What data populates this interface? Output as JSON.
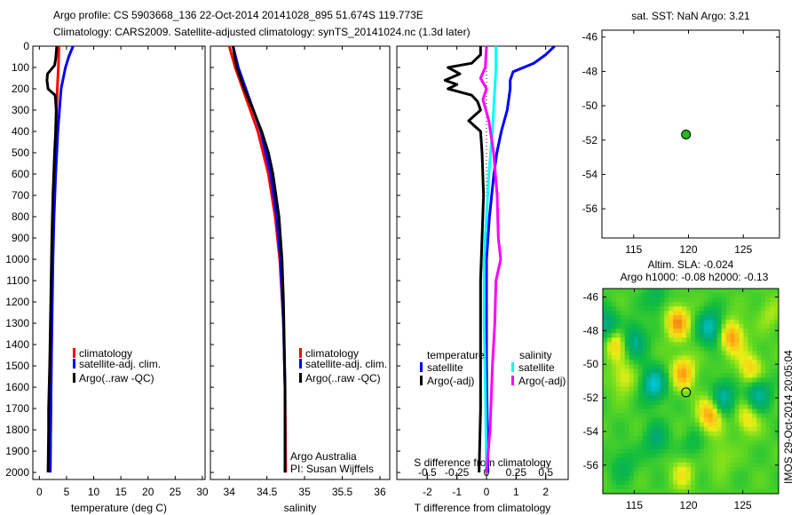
{
  "title_line1": "Argo profile: CS 5903668_136 22-Oct-2014 20141028_895 51.674S 119.773E",
  "title_line2": "Climatology: CARS2009. Satellite-adjusted climatology: synTS_20141024.nc (1.3d later)",
  "colors": {
    "climatology": "#ff0000",
    "satellite": "#0000ff",
    "argo": "#000000",
    "sal_satellite": "#00ffff",
    "sal_argo": "#ff00ff",
    "float_marker": "#22bb22"
  },
  "chart_data": [
    {
      "type": "line",
      "id": "temperature",
      "xlabel": "temperature (deg C)",
      "xlim": [
        -1.2,
        30.5
      ],
      "ylim": [
        0,
        2033
      ],
      "xticks": [
        0,
        5,
        10,
        15,
        20,
        25,
        30
      ],
      "yticks": [
        0,
        100,
        200,
        300,
        400,
        500,
        600,
        700,
        800,
        900,
        1000,
        1100,
        1200,
        1300,
        1400,
        1500,
        1600,
        1700,
        1800,
        1900,
        2000
      ],
      "legend": [
        "climatology",
        "satellite-adj. clim.",
        "Argo(..raw -QC)"
      ],
      "series": [
        {
          "name": "climatology",
          "color": "#ff0000",
          "depth": [
            0,
            100,
            200,
            400,
            600,
            1000,
            1500,
            2000
          ],
          "values": [
            3.6,
            3.5,
            3.3,
            3.0,
            2.7,
            2.4,
            2.2,
            2.0
          ]
        },
        {
          "name": "satellite-adj. clim.",
          "color": "#0000ff",
          "depth": [
            0,
            50,
            100,
            200,
            300,
            400,
            600,
            800,
            1000,
            1500,
            2000
          ],
          "values": [
            6.2,
            5.4,
            4.8,
            4.0,
            3.7,
            3.4,
            3.0,
            2.7,
            2.5,
            2.2,
            2.0
          ]
        },
        {
          "name": "Argo(..raw -QC)",
          "color": "#000000",
          "depth": [
            0,
            60,
            90,
            130,
            160,
            200,
            230,
            260,
            300,
            400,
            500,
            700,
            900,
            1200,
            1500,
            1700,
            1800,
            2000
          ],
          "values": [
            3.2,
            3.0,
            2.8,
            1.5,
            1.4,
            1.6,
            2.9,
            3.0,
            3.1,
            3.0,
            2.8,
            2.5,
            2.3,
            2.1,
            1.9,
            1.7,
            1.7,
            1.6
          ]
        }
      ]
    },
    {
      "type": "line",
      "id": "salinity",
      "xlabel": "salinity",
      "xlim": [
        33.75,
        36.13
      ],
      "ylim": [
        0,
        2033
      ],
      "xticks": [
        34,
        34.5,
        35,
        35.5,
        36
      ],
      "legend": [
        "climatology",
        "satellite-adj. clim.",
        "Argo(..raw -QC)"
      ],
      "annotation": [
        "Argo Australia",
        "PI: Susan Wijffels"
      ],
      "series": [
        {
          "name": "climatology",
          "color": "#ff0000",
          "depth": [
            0,
            100,
            200,
            300,
            400,
            600,
            800,
            1000,
            1300,
            1600,
            2000
          ],
          "values": [
            34.0,
            34.08,
            34.18,
            34.28,
            34.38,
            34.52,
            34.61,
            34.67,
            34.72,
            34.74,
            34.75
          ]
        },
        {
          "name": "satellite-adj. clim.",
          "color": "#0000ff",
          "depth": [
            0,
            100,
            200,
            300,
            400,
            600,
            800,
            1000,
            1300,
            1600,
            2000
          ],
          "values": [
            34.05,
            34.12,
            34.22,
            34.32,
            34.42,
            34.55,
            34.63,
            34.68,
            34.72,
            34.74,
            34.74
          ]
        },
        {
          "name": "Argo(..raw -QC)",
          "color": "#000000",
          "depth": [
            0,
            100,
            200,
            300,
            400,
            500,
            600,
            700,
            800,
            900,
            1000,
            1200,
            1400,
            1600,
            1800,
            2000
          ],
          "values": [
            34.05,
            34.1,
            34.2,
            34.32,
            34.43,
            34.52,
            34.58,
            34.62,
            34.66,
            34.68,
            34.7,
            34.72,
            34.73,
            34.74,
            34.74,
            34.74
          ]
        }
      ]
    },
    {
      "type": "line",
      "id": "difference",
      "xlabel": "T difference from climatology",
      "x2label": "S difference from climatology",
      "xlim": [
        -3.03,
        2.76
      ],
      "s_scale": 0.25,
      "ylim": [
        0,
        2033
      ],
      "xticks": [
        -2,
        -1,
        0,
        1,
        2
      ],
      "x2ticks": [
        -0.5,
        -0.25,
        0,
        0.25,
        0.5
      ],
      "x2ticklabels": [
        "-0.5",
        "-0.25",
        "0",
        "0.25",
        "0.5"
      ],
      "legend_headers": [
        "temperature",
        "salinity"
      ],
      "legend": [
        "satellite",
        "Argo(-adj)",
        "satellite",
        "Argo(-adj)"
      ],
      "series": [
        {
          "name": "T satellite",
          "color": "#0000ff",
          "depth": [
            0,
            40,
            80,
            120,
            160,
            200,
            300,
            400,
            500,
            600,
            800,
            1000,
            1500,
            2000
          ],
          "values": [
            2.3,
            2.0,
            1.6,
            0.9,
            0.8,
            0.8,
            0.7,
            0.5,
            0.35,
            0.25,
            0.1,
            0.0,
            0.0,
            0.05
          ]
        },
        {
          "name": "T Argo(-adj)",
          "color": "#000000",
          "depth": [
            0,
            40,
            80,
            100,
            130,
            160,
            180,
            200,
            230,
            260,
            300,
            350,
            400,
            500,
            700,
            900,
            1100,
            1400,
            1700,
            2000
          ],
          "values": [
            -0.2,
            -0.2,
            -0.5,
            -1.3,
            -0.9,
            -1.4,
            -1.0,
            -1.3,
            -0.5,
            -0.3,
            -0.2,
            -0.6,
            -0.2,
            -0.15,
            -0.1,
            -0.15,
            -0.2,
            -0.2,
            -0.2,
            -0.25
          ]
        },
        {
          "name": "S satellite",
          "color": "#00ffff",
          "depth": [
            0,
            100,
            200,
            300,
            400,
            600,
            800,
            1000,
            1300,
            1600,
            2000
          ],
          "values": [
            0.08,
            0.08,
            0.07,
            0.06,
            0.05,
            0.02,
            0.0,
            -0.02,
            -0.02,
            -0.01,
            0.0
          ]
        },
        {
          "name": "S Argo(-adj)",
          "color": "#ff00ff",
          "depth": [
            0,
            100,
            150,
            200,
            250,
            350,
            500,
            700,
            900,
            1000,
            1100,
            1300,
            1500,
            1800,
            2000
          ],
          "values": [
            0.0,
            -0.01,
            -0.05,
            0.0,
            -0.03,
            0.02,
            0.06,
            0.09,
            0.1,
            0.12,
            0.08,
            0.07,
            0.05,
            0.03,
            0.0
          ]
        }
      ]
    },
    {
      "type": "scatter",
      "id": "sst-map",
      "title": "sat. SST: NaN Argo: 3.21",
      "xlim": [
        112.1,
        128.3
      ],
      "ylim": [
        -57.7,
        -45.6
      ],
      "xticks": [
        115,
        120,
        125
      ],
      "yticks": [
        -46,
        -48,
        -50,
        -52,
        -54,
        -56
      ],
      "points": [
        {
          "lon": 119.773,
          "lat": -51.674
        }
      ]
    },
    {
      "type": "heatmap",
      "id": "sla-map",
      "title_line1": "Altim. SLA: -0.024",
      "title_line2": "Argo h1000: -0.08 h2000: -0.13",
      "side_label": "IMOS 29-Oct-2014 20:05:04",
      "xlim": [
        112.1,
        128.3
      ],
      "ylim": [
        -57.7,
        -45.5
      ],
      "xticks": [
        115,
        120,
        125
      ],
      "yticks": [
        -46,
        -48,
        -50,
        -52,
        -54,
        -56
      ],
      "point": {
        "lon": 119.773,
        "lat": -51.674
      },
      "features": [
        {
          "lon": 112.5,
          "lat": -47.8,
          "v": -1.0
        },
        {
          "lon": 113.2,
          "lat": -48.6,
          "v": 0.9
        },
        {
          "lon": 115.0,
          "lat": -48.6,
          "v": -0.8
        },
        {
          "lon": 119.0,
          "lat": -47.5,
          "v": 1.0
        },
        {
          "lon": 122.0,
          "lat": -47.8,
          "v": -1.0
        },
        {
          "lon": 124.0,
          "lat": -48.4,
          "v": 1.0
        },
        {
          "lon": 119.5,
          "lat": -50.5,
          "v": 0.9
        },
        {
          "lon": 116.8,
          "lat": -51.2,
          "v": -1.1
        },
        {
          "lon": 114.0,
          "lat": -50.8,
          "v": 0.5
        },
        {
          "lon": 125.7,
          "lat": -50.3,
          "v": 0.7
        },
        {
          "lon": 123.2,
          "lat": -52.0,
          "v": -0.9
        },
        {
          "lon": 126.4,
          "lat": -51.8,
          "v": -0.9
        },
        {
          "lon": 122.0,
          "lat": -53.0,
          "v": 1.0
        },
        {
          "lon": 125.5,
          "lat": -53.2,
          "v": 0.6
        },
        {
          "lon": 117.0,
          "lat": -54.5,
          "v": -0.6
        },
        {
          "lon": 119.5,
          "lat": -56.5,
          "v": 0.5
        },
        {
          "lon": 123.0,
          "lat": -55.5,
          "v": 0.3
        },
        {
          "lon": 114.0,
          "lat": -56.0,
          "v": -0.4
        },
        {
          "lon": 127.5,
          "lat": -47.0,
          "v": 0.3
        },
        {
          "lon": 117.0,
          "lat": -46.0,
          "v": -0.4
        },
        {
          "lon": 120.5,
          "lat": -54.8,
          "v": -0.3
        }
      ]
    }
  ]
}
